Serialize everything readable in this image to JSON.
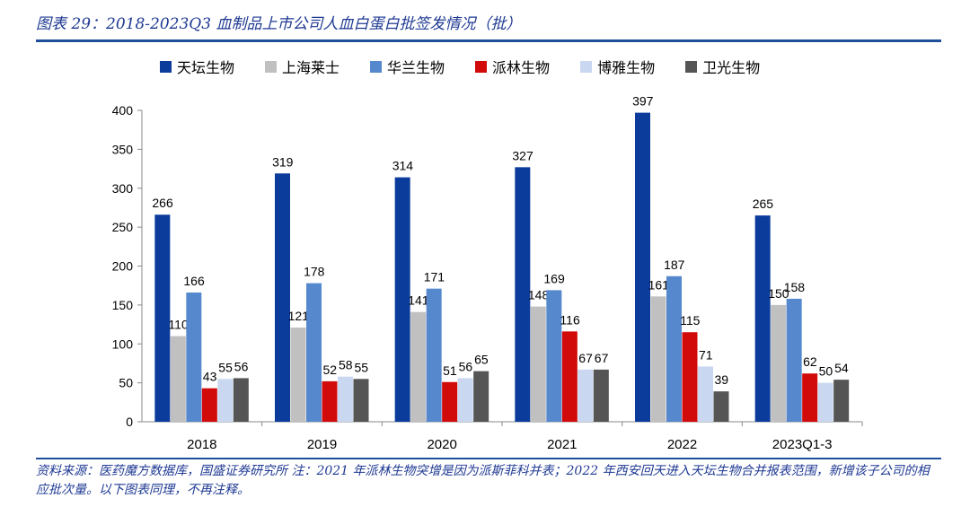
{
  "title": "图表 29：2018-2023Q3 血制品上市公司人血白蛋白批签发情况（批）",
  "note": "资料来源：医药魔方数据库，国盛证券研究所 注：2021 年派林生物突增是因为派斯菲科并表；2022 年西安回天进入天坛生物合并报表范围，新增该子公司的相应批次量。以下图表同理，不再注释。",
  "chart_data": {
    "type": "bar",
    "categories": [
      "2018",
      "2019",
      "2020",
      "2021",
      "2022",
      "2023Q1-3"
    ],
    "series": [
      {
        "name": "天坛生物",
        "color": "#0b3c9c",
        "values": [
          266,
          319,
          314,
          327,
          397,
          265
        ]
      },
      {
        "name": "上海莱士",
        "color": "#c0c0c0",
        "values": [
          110,
          121,
          141,
          148,
          161,
          150
        ]
      },
      {
        "name": "华兰生物",
        "color": "#5588cc",
        "values": [
          166,
          178,
          171,
          169,
          187,
          158
        ]
      },
      {
        "name": "派林生物",
        "color": "#d10a0a",
        "values": [
          43,
          52,
          51,
          116,
          115,
          62
        ]
      },
      {
        "name": "博雅生物",
        "color": "#c9d8f0",
        "values": [
          55,
          58,
          56,
          67,
          71,
          50
        ]
      },
      {
        "name": "卫光生物",
        "color": "#555555",
        "values": [
          56,
          55,
          65,
          67,
          39,
          54
        ]
      }
    ],
    "ylim": [
      0,
      400
    ],
    "yticks": [
      0,
      50,
      100,
      150,
      200,
      250,
      300,
      350,
      400
    ],
    "grid": false,
    "legend_position": "top"
  }
}
